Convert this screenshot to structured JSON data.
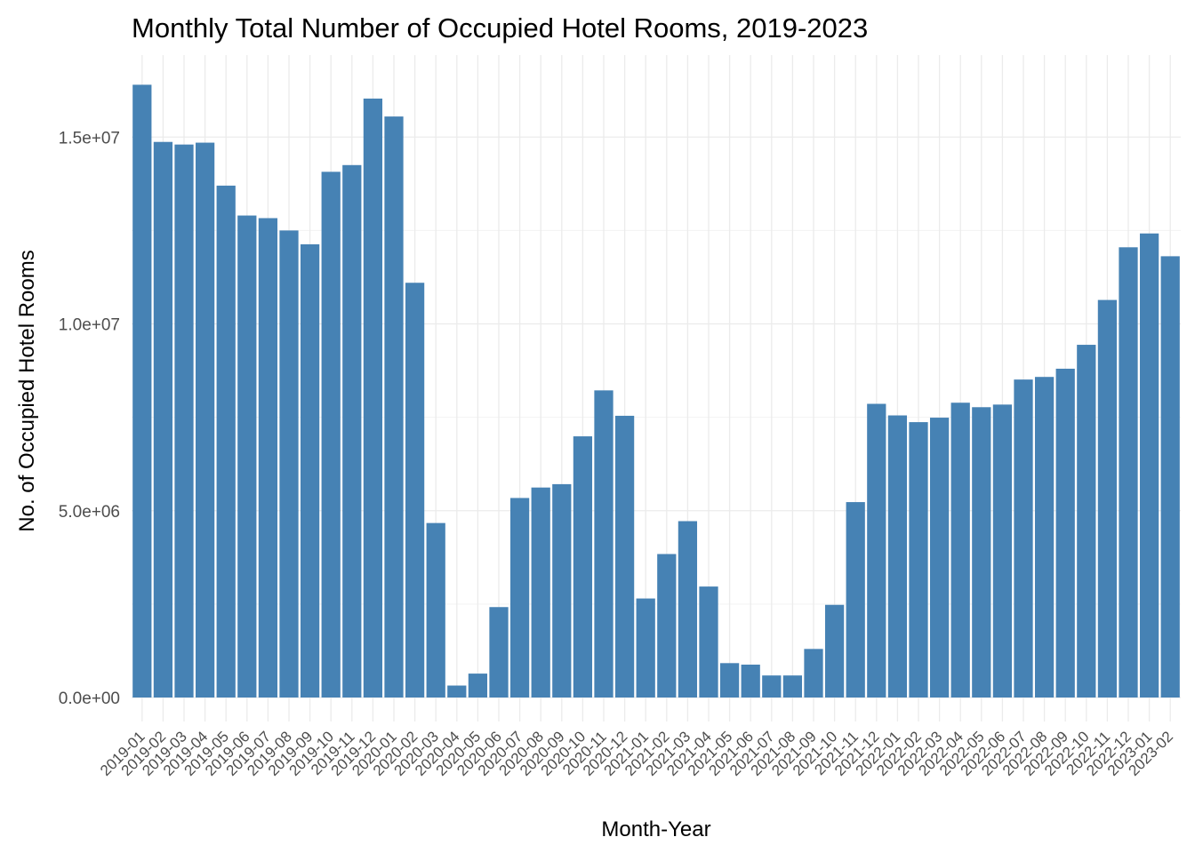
{
  "chart_data": {
    "type": "bar",
    "title": "Monthly Total Number of Occupied Hotel Rooms, 2019-2023",
    "xlabel": "Month-Year",
    "ylabel": "No. of Occupied Hotel Rooms",
    "bar_color": "#4682B4",
    "grid": true,
    "ylim": [
      0,
      16400000
    ],
    "yticks": [
      {
        "value": 0,
        "label": "0.0e+00"
      },
      {
        "value": 5000000,
        "label": "5.0e+06"
      },
      {
        "value": 10000000,
        "label": "1.0e+07"
      },
      {
        "value": 15000000,
        "label": "1.5e+07"
      }
    ],
    "categories": [
      "2019-01",
      "2019-02",
      "2019-03",
      "2019-04",
      "2019-05",
      "2019-06",
      "2019-07",
      "2019-08",
      "2019-09",
      "2019-10",
      "2019-11",
      "2019-12",
      "2020-01",
      "2020-02",
      "2020-03",
      "2020-04",
      "2020-05",
      "2020-06",
      "2020-07",
      "2020-08",
      "2020-09",
      "2020-10",
      "2020-11",
      "2020-12",
      "2021-01",
      "2021-02",
      "2021-03",
      "2021-04",
      "2021-05",
      "2021-06",
      "2021-07",
      "2021-08",
      "2021-09",
      "2021-10",
      "2021-11",
      "2021-12",
      "2022-01",
      "2022-02",
      "2022-03",
      "2022-04",
      "2022-05",
      "2022-06",
      "2022-07",
      "2022-08",
      "2022-09",
      "2022-10",
      "2022-11",
      "2022-12",
      "2023-01",
      "2023-02"
    ],
    "values": [
      16400000,
      14870000,
      14800000,
      14850000,
      13700000,
      12900000,
      12830000,
      12500000,
      12130000,
      14070000,
      14250000,
      16030000,
      15550000,
      11100000,
      4670000,
      320000,
      640000,
      2420000,
      5340000,
      5620000,
      5710000,
      6990000,
      8220000,
      7540000,
      2650000,
      3840000,
      4720000,
      2970000,
      920000,
      880000,
      590000,
      590000,
      1300000,
      2480000,
      5230000,
      7860000,
      7550000,
      7370000,
      7490000,
      7890000,
      7770000,
      7840000,
      8510000,
      8580000,
      8800000,
      9440000,
      10640000,
      12050000,
      12420000,
      11810000
    ]
  }
}
